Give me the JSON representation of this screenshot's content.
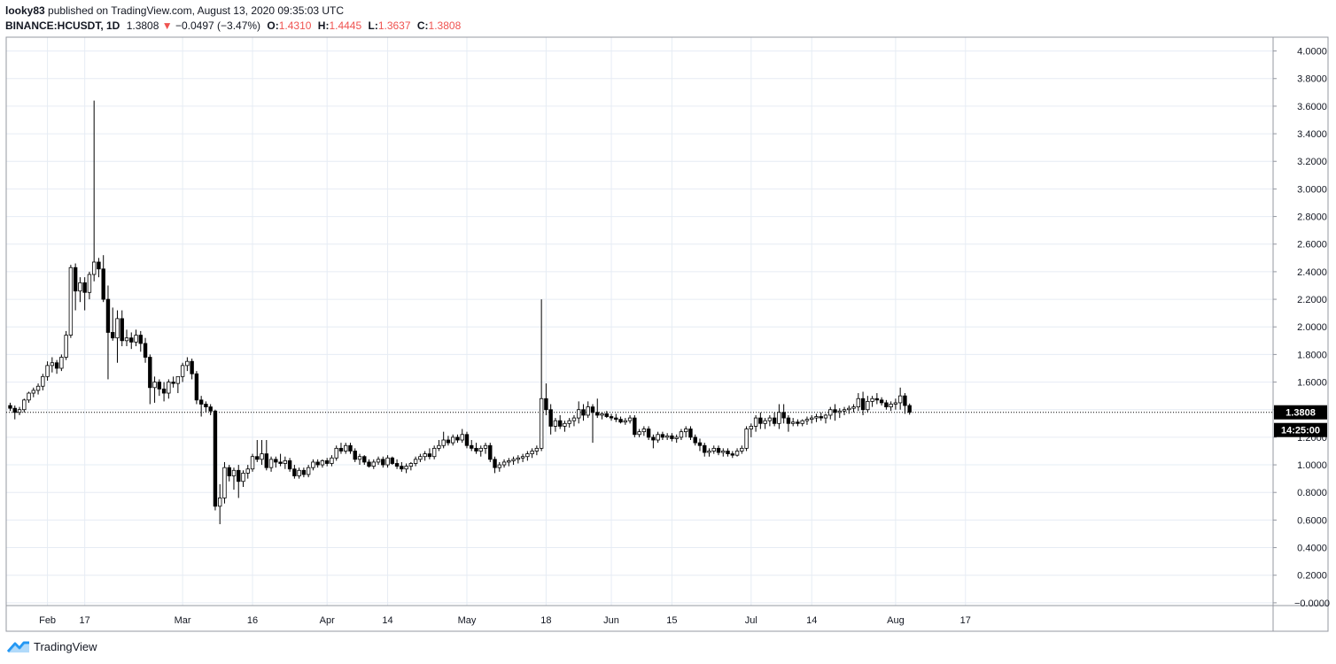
{
  "header": {
    "author": "looky83",
    "published_text": "published on TradingView.com, August 13, 2020 09:35:03 UTC",
    "symbol": "BINANCE:HCUSDT, 1D",
    "last": "1.3808",
    "change": "−0.0497 (−3.47%)",
    "o_label": "O:",
    "o_value": "1.4310",
    "h_label": "H:",
    "h_value": "1.4445",
    "l_label": "L:",
    "l_value": "1.3637",
    "c_label": "C:",
    "c_value": "1.3808",
    "down_arrow": "▼"
  },
  "footer": {
    "brand": "TradingView",
    "logo_icon": "tradingview-logo-icon"
  },
  "colors": {
    "up_fill": "#ffffff",
    "down_fill": "#000000",
    "candle_border": "#000000",
    "grid": "#e6ecf4",
    "text": "#131722",
    "accent_red": "#ef5350",
    "label_bg": "#000000",
    "label_text": "#ffffff"
  },
  "chart_data": {
    "type": "candlestick",
    "title": "",
    "xlabel": "",
    "ylabel": "",
    "ylim": [
      -0.02,
      4.1
    ],
    "y_ticks": [
      "4.0000",
      "3.8000",
      "3.6000",
      "3.4000",
      "3.2000",
      "3.0000",
      "2.8000",
      "2.6000",
      "2.4000",
      "2.2000",
      "2.0000",
      "1.8000",
      "1.6000",
      "1.4000",
      "1.2000",
      "1.0000",
      "0.8000",
      "0.6000",
      "0.4000",
      "0.2000",
      "−0.0000"
    ],
    "x_ticks": [
      {
        "day": 8,
        "label": "Feb"
      },
      {
        "day": 16,
        "label": "17"
      },
      {
        "day": 37,
        "label": "Mar"
      },
      {
        "day": 52,
        "label": "16"
      },
      {
        "day": 68,
        "label": "Apr"
      },
      {
        "day": 81,
        "label": "14"
      },
      {
        "day": 98,
        "label": "May"
      },
      {
        "day": 115,
        "label": "18"
      },
      {
        "day": 129,
        "label": "Jun"
      },
      {
        "day": 142,
        "label": "15"
      },
      {
        "day": 159,
        "label": "Jul"
      },
      {
        "day": 172,
        "label": "14"
      },
      {
        "day": 190,
        "label": "Aug"
      },
      {
        "day": 205,
        "label": "17"
      }
    ],
    "current_price": 1.3808,
    "price_label": "1.3808",
    "time_label": "14:25:00",
    "ohlc": [
      [
        1.43,
        1.45,
        1.39,
        1.41
      ],
      [
        1.41,
        1.43,
        1.33,
        1.38
      ],
      [
        1.38,
        1.42,
        1.36,
        1.4
      ],
      [
        1.4,
        1.48,
        1.38,
        1.47
      ],
      [
        1.47,
        1.53,
        1.45,
        1.52
      ],
      [
        1.52,
        1.56,
        1.49,
        1.54
      ],
      [
        1.54,
        1.59,
        1.51,
        1.57
      ],
      [
        1.57,
        1.66,
        1.54,
        1.64
      ],
      [
        1.64,
        1.75,
        1.61,
        1.72
      ],
      [
        1.72,
        1.78,
        1.67,
        1.74
      ],
      [
        1.74,
        1.76,
        1.66,
        1.7
      ],
      [
        1.7,
        1.8,
        1.68,
        1.78
      ],
      [
        1.78,
        1.97,
        1.76,
        1.94
      ],
      [
        1.94,
        2.45,
        1.92,
        2.43
      ],
      [
        2.43,
        2.46,
        2.12,
        2.26
      ],
      [
        2.26,
        2.36,
        2.18,
        2.32
      ],
      [
        2.32,
        2.36,
        2.12,
        2.25
      ],
      [
        2.25,
        2.4,
        2.2,
        2.38
      ],
      [
        2.38,
        3.64,
        2.33,
        2.47
      ],
      [
        2.47,
        2.5,
        2.36,
        2.42
      ],
      [
        2.42,
        2.52,
        2.18,
        2.2
      ],
      [
        2.2,
        2.3,
        1.62,
        1.96
      ],
      [
        1.96,
        2.14,
        1.9,
        1.92
      ],
      [
        1.92,
        2.12,
        1.74,
        2.06
      ],
      [
        2.06,
        2.12,
        1.86,
        1.9
      ],
      [
        1.9,
        1.98,
        1.86,
        1.92
      ],
      [
        1.92,
        1.96,
        1.84,
        1.89
      ],
      [
        1.89,
        1.98,
        1.86,
        1.94
      ],
      [
        1.94,
        1.97,
        1.82,
        1.88
      ],
      [
        1.88,
        1.92,
        1.74,
        1.78
      ],
      [
        1.78,
        1.8,
        1.44,
        1.56
      ],
      [
        1.56,
        1.64,
        1.45,
        1.6
      ],
      [
        1.6,
        1.62,
        1.5,
        1.55
      ],
      [
        1.55,
        1.6,
        1.46,
        1.52
      ],
      [
        1.52,
        1.62,
        1.48,
        1.6
      ],
      [
        1.6,
        1.64,
        1.56,
        1.59
      ],
      [
        1.59,
        1.62,
        1.52,
        1.64
      ],
      [
        1.64,
        1.74,
        1.6,
        1.72
      ],
      [
        1.72,
        1.78,
        1.68,
        1.75
      ],
      [
        1.75,
        1.77,
        1.62,
        1.66
      ],
      [
        1.66,
        1.68,
        1.44,
        1.47
      ],
      [
        1.47,
        1.5,
        1.35,
        1.44
      ],
      [
        1.44,
        1.46,
        1.38,
        1.42
      ],
      [
        1.42,
        1.44,
        1.36,
        1.39
      ],
      [
        1.39,
        1.4,
        0.67,
        0.7
      ],
      [
        0.7,
        0.86,
        0.57,
        0.76
      ],
      [
        0.76,
        1.02,
        0.72,
        0.98
      ],
      [
        0.98,
        1.0,
        0.88,
        0.92
      ],
      [
        0.92,
        0.98,
        0.82,
        0.96
      ],
      [
        0.96,
        1.0,
        0.76,
        0.88
      ],
      [
        0.88,
        0.96,
        0.84,
        0.94
      ],
      [
        0.94,
        1.0,
        0.9,
        0.97
      ],
      [
        0.97,
        1.08,
        0.95,
        1.06
      ],
      [
        1.06,
        1.18,
        1.02,
        1.04
      ],
      [
        1.04,
        1.18,
        1.0,
        1.08
      ],
      [
        1.08,
        1.18,
        0.96,
        0.98
      ],
      [
        0.98,
        1.06,
        0.95,
        1.04
      ],
      [
        1.04,
        1.06,
        0.98,
        1.02
      ],
      [
        1.02,
        1.08,
        0.99,
        1.01
      ],
      [
        1.01,
        1.06,
        0.97,
        1.03
      ],
      [
        1.03,
        1.05,
        0.95,
        0.97
      ],
      [
        0.97,
        1.0,
        0.9,
        0.92
      ],
      [
        0.92,
        0.98,
        0.9,
        0.96
      ],
      [
        0.96,
        0.98,
        0.91,
        0.93
      ],
      [
        0.93,
        1.0,
        0.91,
        0.98
      ],
      [
        0.98,
        1.04,
        0.96,
        1.02
      ],
      [
        1.02,
        1.04,
        0.98,
        1.0
      ],
      [
        1.0,
        1.04,
        0.98,
        1.03
      ],
      [
        1.03,
        1.05,
        0.99,
        1.01
      ],
      [
        1.01,
        1.07,
        0.99,
        1.05
      ],
      [
        1.05,
        1.14,
        1.03,
        1.12
      ],
      [
        1.12,
        1.16,
        1.08,
        1.1
      ],
      [
        1.1,
        1.16,
        1.08,
        1.14
      ],
      [
        1.14,
        1.16,
        1.08,
        1.1
      ],
      [
        1.1,
        1.12,
        1.02,
        1.04
      ],
      [
        1.04,
        1.08,
        1.0,
        1.06
      ],
      [
        1.06,
        1.07,
        1.0,
        1.02
      ],
      [
        1.02,
        1.04,
        0.98,
        0.99
      ],
      [
        0.99,
        1.04,
        0.97,
        1.02
      ],
      [
        1.02,
        1.06,
        1.0,
        1.04
      ],
      [
        1.04,
        1.06,
        0.98,
        1.0
      ],
      [
        1.0,
        1.07,
        0.98,
        1.05
      ],
      [
        1.05,
        1.06,
        1.0,
        1.01
      ],
      [
        1.01,
        1.04,
        0.97,
        0.99
      ],
      [
        0.99,
        1.02,
        0.95,
        0.97
      ],
      [
        0.97,
        1.01,
        0.94,
        0.99
      ],
      [
        0.99,
        1.02,
        0.96,
        1.01
      ],
      [
        1.01,
        1.06,
        0.99,
        1.04
      ],
      [
        1.04,
        1.08,
        1.02,
        1.06
      ],
      [
        1.06,
        1.1,
        1.03,
        1.08
      ],
      [
        1.08,
        1.12,
        1.04,
        1.06
      ],
      [
        1.06,
        1.14,
        1.04,
        1.12
      ],
      [
        1.12,
        1.18,
        1.1,
        1.14
      ],
      [
        1.14,
        1.24,
        1.12,
        1.18
      ],
      [
        1.18,
        1.21,
        1.14,
        1.16
      ],
      [
        1.16,
        1.22,
        1.14,
        1.2
      ],
      [
        1.2,
        1.22,
        1.16,
        1.18
      ],
      [
        1.18,
        1.26,
        1.16,
        1.22
      ],
      [
        1.22,
        1.24,
        1.12,
        1.14
      ],
      [
        1.14,
        1.18,
        1.1,
        1.12
      ],
      [
        1.12,
        1.16,
        1.08,
        1.1
      ],
      [
        1.1,
        1.14,
        1.06,
        1.12
      ],
      [
        1.12,
        1.16,
        1.08,
        1.14
      ],
      [
        1.14,
        1.16,
        1.02,
        1.04
      ],
      [
        1.04,
        1.06,
        0.94,
        0.98
      ],
      [
        0.98,
        1.02,
        0.95,
        1.0
      ],
      [
        1.0,
        1.04,
        0.98,
        1.02
      ],
      [
        1.02,
        1.05,
        0.99,
        1.03
      ],
      [
        1.03,
        1.06,
        1.0,
        1.04
      ],
      [
        1.04,
        1.07,
        1.01,
        1.05
      ],
      [
        1.05,
        1.08,
        1.02,
        1.06
      ],
      [
        1.06,
        1.1,
        1.03,
        1.08
      ],
      [
        1.08,
        1.12,
        1.05,
        1.1
      ],
      [
        1.1,
        1.14,
        1.07,
        1.12
      ],
      [
        1.12,
        2.2,
        1.1,
        1.48
      ],
      [
        1.48,
        1.59,
        1.36,
        1.4
      ],
      [
        1.4,
        1.44,
        1.22,
        1.28
      ],
      [
        1.28,
        1.34,
        1.24,
        1.32
      ],
      [
        1.32,
        1.36,
        1.26,
        1.28
      ],
      [
        1.28,
        1.32,
        1.24,
        1.3
      ],
      [
        1.3,
        1.34,
        1.27,
        1.32
      ],
      [
        1.32,
        1.36,
        1.28,
        1.34
      ],
      [
        1.34,
        1.46,
        1.3,
        1.4
      ],
      [
        1.4,
        1.44,
        1.32,
        1.36
      ],
      [
        1.36,
        1.46,
        1.34,
        1.42
      ],
      [
        1.42,
        1.44,
        1.16,
        1.38
      ],
      [
        1.38,
        1.48,
        1.34,
        1.36
      ],
      [
        1.36,
        1.38,
        1.33,
        1.37
      ],
      [
        1.37,
        1.39,
        1.34,
        1.35
      ],
      [
        1.35,
        1.37,
        1.32,
        1.34
      ],
      [
        1.34,
        1.37,
        1.31,
        1.33
      ],
      [
        1.33,
        1.35,
        1.3,
        1.31
      ],
      [
        1.31,
        1.34,
        1.29,
        1.32
      ],
      [
        1.32,
        1.36,
        1.3,
        1.34
      ],
      [
        1.34,
        1.36,
        1.2,
        1.22
      ],
      [
        1.22,
        1.26,
        1.2,
        1.24
      ],
      [
        1.24,
        1.28,
        1.21,
        1.26
      ],
      [
        1.26,
        1.28,
        1.18,
        1.2
      ],
      [
        1.2,
        1.22,
        1.12,
        1.18
      ],
      [
        1.18,
        1.24,
        1.16,
        1.22
      ],
      [
        1.22,
        1.24,
        1.18,
        1.2
      ],
      [
        1.2,
        1.23,
        1.18,
        1.21
      ],
      [
        1.21,
        1.23,
        1.17,
        1.19
      ],
      [
        1.19,
        1.22,
        1.16,
        1.2
      ],
      [
        1.2,
        1.26,
        1.18,
        1.24
      ],
      [
        1.24,
        1.28,
        1.2,
        1.26
      ],
      [
        1.26,
        1.28,
        1.18,
        1.2
      ],
      [
        1.2,
        1.22,
        1.14,
        1.16
      ],
      [
        1.16,
        1.19,
        1.1,
        1.14
      ],
      [
        1.14,
        1.16,
        1.06,
        1.09
      ],
      [
        1.09,
        1.12,
        1.06,
        1.1
      ],
      [
        1.1,
        1.14,
        1.08,
        1.12
      ],
      [
        1.12,
        1.14,
        1.07,
        1.09
      ],
      [
        1.09,
        1.12,
        1.06,
        1.1
      ],
      [
        1.1,
        1.12,
        1.06,
        1.08
      ],
      [
        1.08,
        1.1,
        1.05,
        1.07
      ],
      [
        1.07,
        1.12,
        1.06,
        1.1
      ],
      [
        1.1,
        1.14,
        1.08,
        1.12
      ],
      [
        1.12,
        1.28,
        1.1,
        1.26
      ],
      [
        1.26,
        1.3,
        1.2,
        1.28
      ],
      [
        1.28,
        1.36,
        1.24,
        1.34
      ],
      [
        1.34,
        1.38,
        1.26,
        1.3
      ],
      [
        1.3,
        1.34,
        1.26,
        1.32
      ],
      [
        1.32,
        1.36,
        1.28,
        1.34
      ],
      [
        1.34,
        1.38,
        1.28,
        1.3
      ],
      [
        1.3,
        1.44,
        1.26,
        1.38
      ],
      [
        1.38,
        1.44,
        1.3,
        1.34
      ],
      [
        1.34,
        1.36,
        1.24,
        1.3
      ],
      [
        1.3,
        1.34,
        1.28,
        1.31
      ],
      [
        1.31,
        1.33,
        1.28,
        1.3
      ],
      [
        1.3,
        1.33,
        1.28,
        1.32
      ],
      [
        1.32,
        1.35,
        1.29,
        1.33
      ],
      [
        1.33,
        1.36,
        1.3,
        1.34
      ],
      [
        1.34,
        1.37,
        1.31,
        1.35
      ],
      [
        1.35,
        1.38,
        1.32,
        1.34
      ],
      [
        1.34,
        1.37,
        1.3,
        1.36
      ],
      [
        1.36,
        1.42,
        1.33,
        1.4
      ],
      [
        1.4,
        1.44,
        1.32,
        1.38
      ],
      [
        1.38,
        1.41,
        1.34,
        1.39
      ],
      [
        1.39,
        1.42,
        1.36,
        1.4
      ],
      [
        1.4,
        1.43,
        1.37,
        1.41
      ],
      [
        1.41,
        1.44,
        1.38,
        1.42
      ],
      [
        1.42,
        1.52,
        1.39,
        1.48
      ],
      [
        1.48,
        1.53,
        1.36,
        1.4
      ],
      [
        1.4,
        1.5,
        1.38,
        1.46
      ],
      [
        1.46,
        1.5,
        1.42,
        1.48
      ],
      [
        1.48,
        1.52,
        1.44,
        1.47
      ],
      [
        1.47,
        1.49,
        1.43,
        1.45
      ],
      [
        1.45,
        1.47,
        1.4,
        1.42
      ],
      [
        1.42,
        1.46,
        1.39,
        1.44
      ],
      [
        1.44,
        1.48,
        1.4,
        1.45
      ],
      [
        1.45,
        1.56,
        1.4,
        1.5
      ],
      [
        1.5,
        1.52,
        1.37,
        1.43
      ],
      [
        1.43,
        1.4445,
        1.3637,
        1.3808
      ]
    ]
  }
}
